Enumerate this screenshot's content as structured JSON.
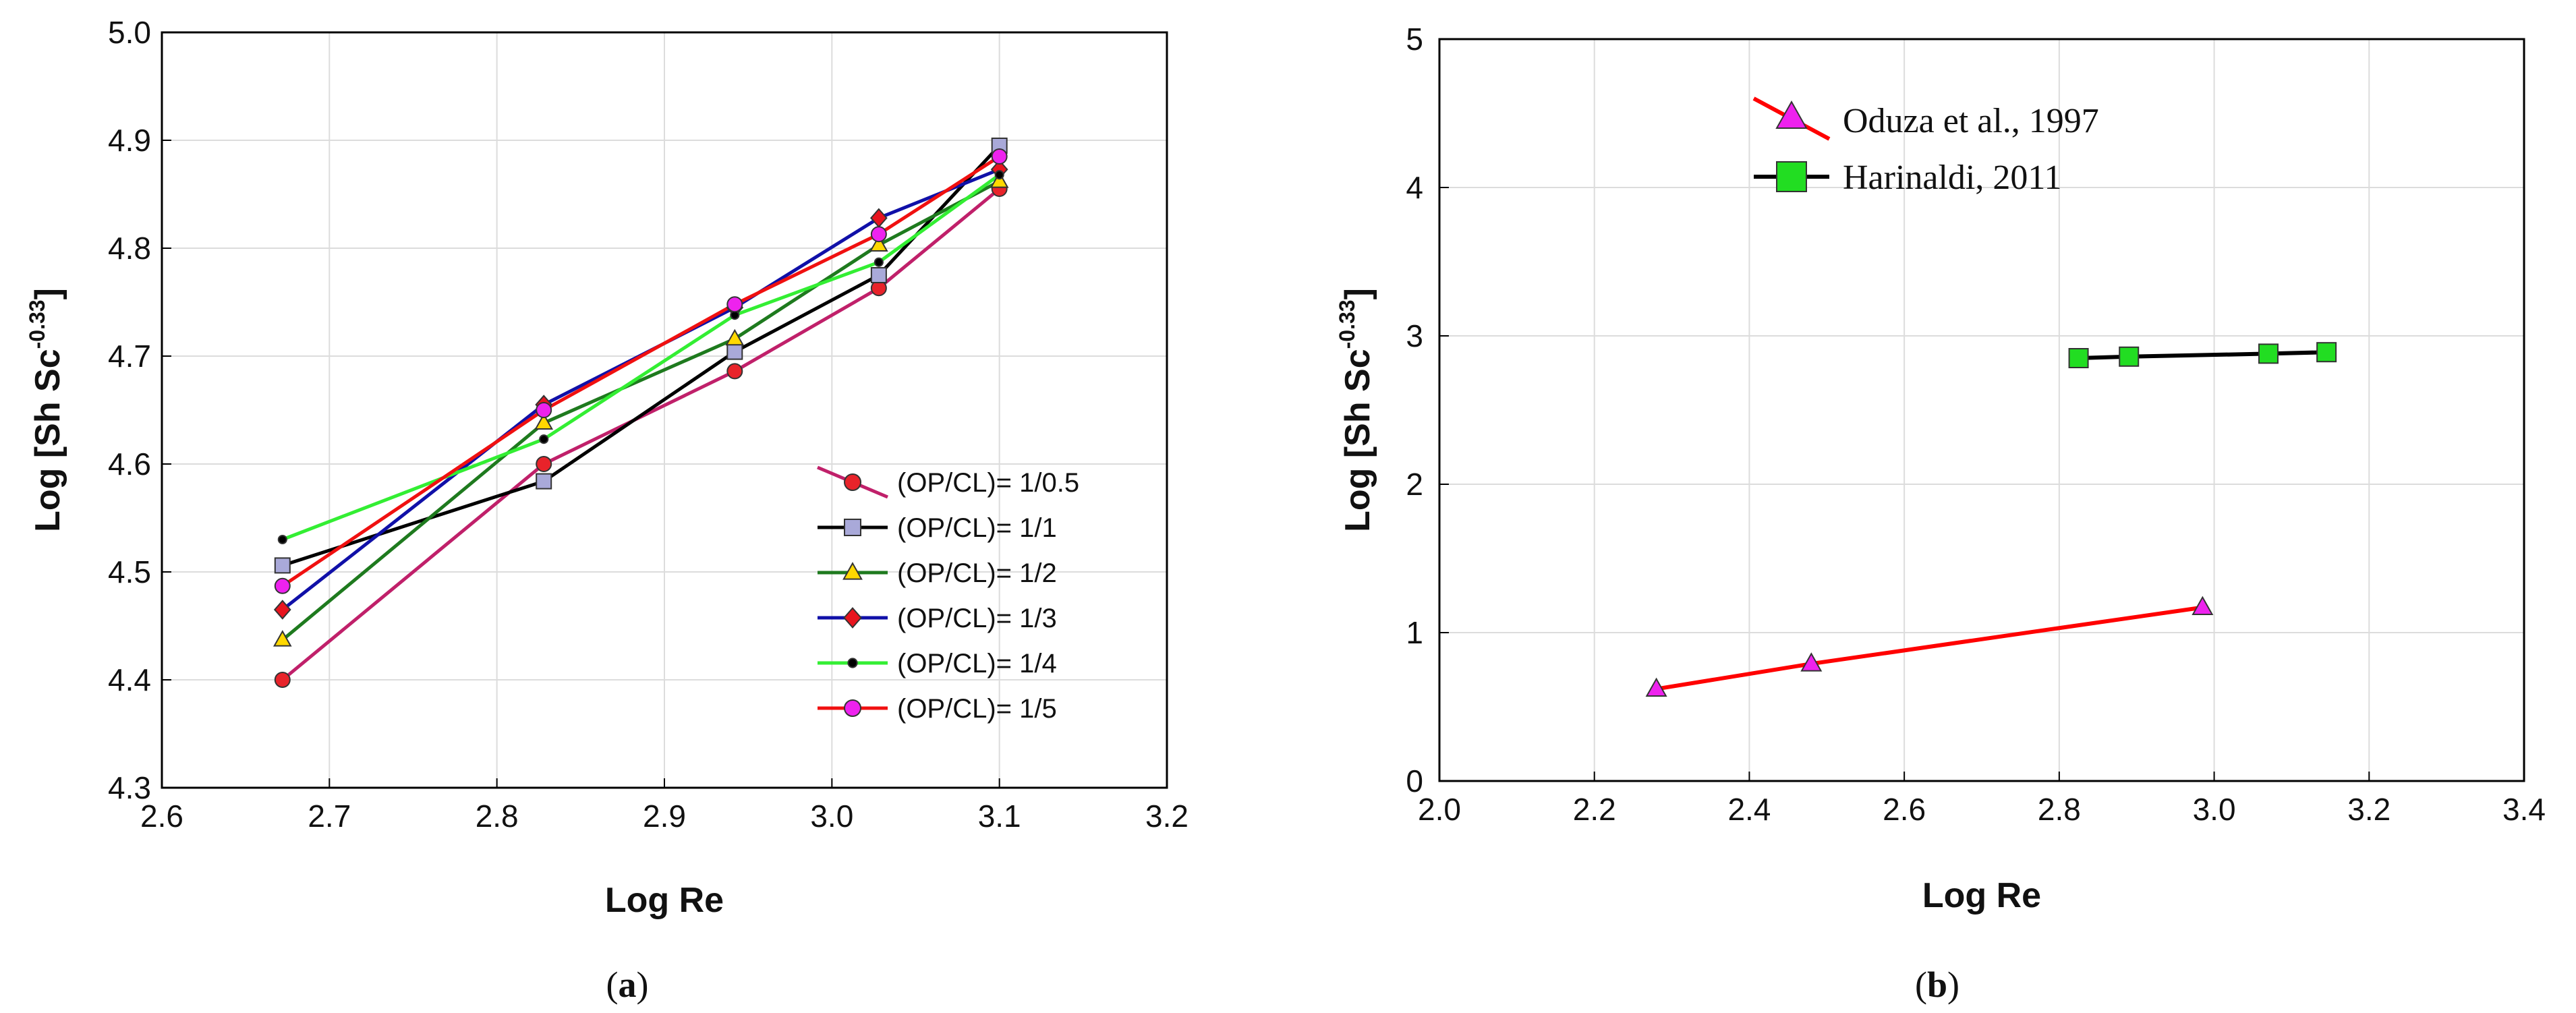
{
  "chart_data": [
    {
      "id": "a",
      "type": "line",
      "caption": {
        "open": "(",
        "letter": "a",
        "close": ")"
      },
      "xlabel": "Log Re",
      "ylabel": {
        "main": "Log [Sh Sc",
        "sup": "-0.33",
        "end": "]"
      },
      "xlim": [
        2.6,
        3.2
      ],
      "ylim": [
        4.3,
        5.0
      ],
      "xticks": [
        "2.6",
        "2.7",
        "2.8",
        "2.9",
        "3.0",
        "3.1",
        "3.2"
      ],
      "yticks": [
        "4.3",
        "4.4",
        "4.5",
        "4.6",
        "4.7",
        "4.8",
        "4.9",
        "5.0"
      ],
      "grid": true,
      "legend": "bottom-right",
      "x": [
        2.672,
        2.828,
        2.942,
        3.028,
        3.1
      ],
      "series": [
        {
          "name": "(OP/CL)=  1/0.5",
          "line_color": "#c0206a",
          "marker": "circle",
          "marker_fill": "#e8232a",
          "values": [
            4.4,
            4.6,
            4.686,
            4.763,
            4.855
          ]
        },
        {
          "name": "(OP/CL)=  1/1",
          "line_color": "#000000",
          "marker": "square",
          "marker_fill": "#a9a9d9",
          "values": [
            4.506,
            4.584,
            4.704,
            4.775,
            4.895
          ]
        },
        {
          "name": "(OP/CL)=  1/2",
          "line_color": "#1e7a1e",
          "marker": "triangle",
          "marker_fill": "#ffd800",
          "values": [
            4.437,
            4.638,
            4.716,
            4.803,
            4.862
          ]
        },
        {
          "name": "(OP/CL)=  1/3",
          "line_color": "#1010a8",
          "marker": "diamond",
          "marker_fill": "#e8141e",
          "values": [
            4.465,
            4.655,
            4.745,
            4.828,
            4.873
          ]
        },
        {
          "name": "(OP/CL)=  1/4",
          "line_color": "#33ee33",
          "marker": "dot",
          "marker_fill": "#000000",
          "values": [
            4.53,
            4.623,
            4.738,
            4.787,
            4.868
          ]
        },
        {
          "name": "(OP/CL)=  1/5",
          "line_color": "#f01010",
          "marker": "circle",
          "marker_fill": "#ee22ee",
          "values": [
            4.487,
            4.65,
            4.748,
            4.813,
            4.885
          ]
        }
      ]
    },
    {
      "id": "b",
      "type": "line",
      "caption": {
        "open": "(",
        "letter": "b",
        "close": ")"
      },
      "xlabel": "Log Re",
      "ylabel": {
        "main": "Log [Sh Sc",
        "sup": "-0.33",
        "end": "]"
      },
      "xlim": [
        2.0,
        3.4
      ],
      "ylim": [
        0,
        5
      ],
      "xticks": [
        "2.0",
        "2.2",
        "2.4",
        "2.6",
        "2.8",
        "3.0",
        "3.2",
        "3.4"
      ],
      "yticks": [
        "0",
        "1",
        "2",
        "3",
        "4",
        "5"
      ],
      "grid": true,
      "legend": "top-left",
      "series": [
        {
          "name": "Oduza et al., 1997",
          "line_color": "#ff0000",
          "marker": "triangle",
          "marker_fill": "#ee22ee",
          "x": [
            2.28,
            2.48,
            2.985
          ],
          "values": [
            0.62,
            0.79,
            1.17
          ]
        },
        {
          "name": "Harinaldi, 2011",
          "line_color": "#000000",
          "marker": "square",
          "marker_fill": "#22dd22",
          "x": [
            2.825,
            2.89,
            3.07,
            3.145
          ],
          "values": [
            2.85,
            2.86,
            2.88,
            2.89
          ]
        }
      ]
    }
  ]
}
